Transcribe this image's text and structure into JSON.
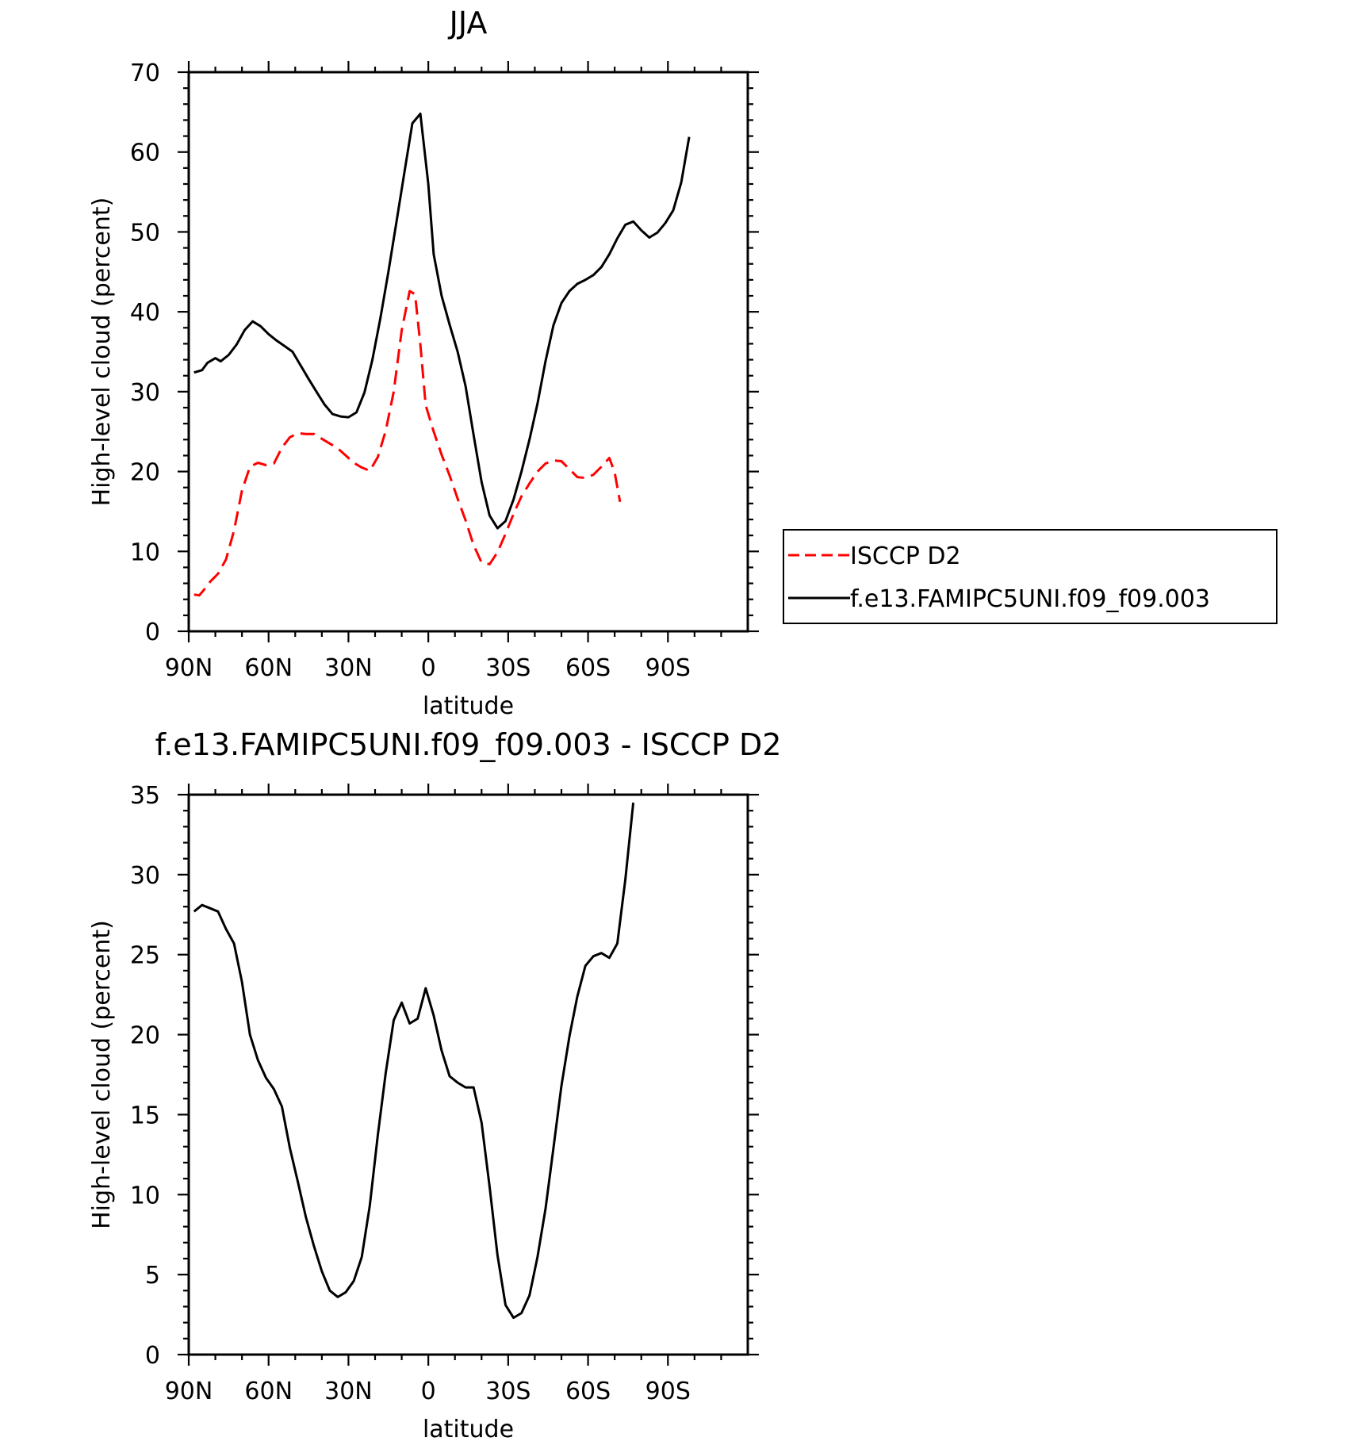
{
  "chart_data": [
    {
      "type": "line",
      "title": "JJA",
      "xlabel": "latitude",
      "ylabel": "High-level cloud (percent)",
      "xlim": [
        90,
        -90
      ],
      "ylim": [
        0,
        70
      ],
      "xticks": [
        {
          "value": 90,
          "label": "90N"
        },
        {
          "value": 60,
          "label": "60N"
        },
        {
          "value": 30,
          "label": "30N"
        },
        {
          "value": 0,
          "label": "0"
        },
        {
          "value": -30,
          "label": "30S"
        },
        {
          "value": -60,
          "label": "60S"
        },
        {
          "value": -90,
          "label": "90S"
        }
      ],
      "yticks": [
        0,
        10,
        20,
        30,
        40,
        50,
        60,
        70
      ],
      "grid": false,
      "legend_position": "right",
      "series": [
        {
          "name": "ISCCP D2",
          "color": "#ff0000",
          "style": "dashed",
          "points": [
            [
              88,
              4.6
            ],
            [
              86,
              4.5
            ],
            [
              84,
              5.3
            ],
            [
              82,
              6.2
            ],
            [
              79,
              7.2
            ],
            [
              76,
              9.0
            ],
            [
              73,
              12.6
            ],
            [
              70,
              17.6
            ],
            [
              67,
              20.6
            ],
            [
              64,
              21.1
            ],
            [
              61,
              20.8
            ],
            [
              58,
              21.0
            ],
            [
              55,
              23.0
            ],
            [
              52,
              24.3
            ],
            [
              49,
              24.8
            ],
            [
              46,
              24.7
            ],
            [
              43,
              24.7
            ],
            [
              40,
              24.1
            ],
            [
              37,
              23.5
            ],
            [
              34,
              22.9
            ],
            [
              31,
              22.0
            ],
            [
              28,
              21.1
            ],
            [
              25,
              20.5
            ],
            [
              22,
              20.1
            ],
            [
              19,
              21.8
            ],
            [
              16,
              25.1
            ],
            [
              13,
              30.0
            ],
            [
              10,
              37.7
            ],
            [
              7,
              42.6
            ],
            [
              5,
              42.2
            ],
            [
              3,
              35.9
            ],
            [
              1,
              28.3
            ],
            [
              -2,
              25.0
            ],
            [
              -5,
              22.1
            ],
            [
              -8,
              19.5
            ],
            [
              -11,
              16.6
            ],
            [
              -14,
              13.9
            ],
            [
              -17,
              10.8
            ],
            [
              -20,
              8.6
            ],
            [
              -23,
              8.4
            ],
            [
              -26,
              9.9
            ],
            [
              -29,
              12.2
            ],
            [
              -32,
              14.7
            ],
            [
              -35,
              16.9
            ],
            [
              -38,
              18.5
            ],
            [
              -41,
              20.0
            ],
            [
              -44,
              21.0
            ],
            [
              -47,
              21.4
            ],
            [
              -50,
              21.3
            ],
            [
              -53,
              20.3
            ],
            [
              -56,
              19.3
            ],
            [
              -59,
              19.2
            ],
            [
              -62,
              19.6
            ],
            [
              -65,
              20.6
            ],
            [
              -68,
              21.7
            ],
            [
              -70,
              19.9
            ],
            [
              -72,
              16.2
            ]
          ]
        },
        {
          "name": "f.e13.FAMIPC5UNI.f09_f09.003",
          "color": "#000000",
          "style": "solid",
          "points": [
            [
              88,
              32.4
            ],
            [
              85,
              32.7
            ],
            [
              83,
              33.6
            ],
            [
              80,
              34.2
            ],
            [
              78,
              33.8
            ],
            [
              75,
              34.6
            ],
            [
              72,
              35.9
            ],
            [
              69,
              37.7
            ],
            [
              66,
              38.8
            ],
            [
              63,
              38.2
            ],
            [
              60,
              37.2
            ],
            [
              57,
              36.4
            ],
            [
              54,
              35.7
            ],
            [
              51,
              35.0
            ],
            [
              48,
              33.3
            ],
            [
              45,
              31.6
            ],
            [
              42,
              30.0
            ],
            [
              39,
              28.4
            ],
            [
              36,
              27.2
            ],
            [
              33,
              26.9
            ],
            [
              30,
              26.8
            ],
            [
              27,
              27.4
            ],
            [
              24,
              29.9
            ],
            [
              21,
              34.0
            ],
            [
              18,
              39.2
            ],
            [
              15,
              45.0
            ],
            [
              12,
              51.2
            ],
            [
              9,
              57.4
            ],
            [
              6,
              63.6
            ],
            [
              3,
              64.8
            ],
            [
              0,
              56.0
            ],
            [
              -2,
              47.2
            ],
            [
              -5,
              42.0
            ],
            [
              -8,
              38.4
            ],
            [
              -11,
              35.0
            ],
            [
              -14,
              30.7
            ],
            [
              -17,
              24.6
            ],
            [
              -20,
              18.7
            ],
            [
              -23,
              14.5
            ],
            [
              -26,
              12.9
            ],
            [
              -29,
              13.8
            ],
            [
              -32,
              16.5
            ],
            [
              -35,
              20.0
            ],
            [
              -38,
              24.0
            ],
            [
              -41,
              28.5
            ],
            [
              -44,
              33.8
            ],
            [
              -47,
              38.3
            ],
            [
              -50,
              41.1
            ],
            [
              -53,
              42.6
            ],
            [
              -56,
              43.5
            ],
            [
              -59,
              44.0
            ],
            [
              -62,
              44.6
            ],
            [
              -65,
              45.6
            ],
            [
              -68,
              47.2
            ],
            [
              -71,
              49.2
            ],
            [
              -74,
              50.9
            ],
            [
              -77,
              51.3
            ],
            [
              -80,
              50.2
            ],
            [
              -83,
              49.3
            ],
            [
              -86,
              49.9
            ],
            [
              -89,
              51.1
            ],
            [
              -92,
              52.7
            ],
            [
              -95,
              56.2
            ],
            [
              -98,
              61.9
            ]
          ]
        }
      ]
    },
    {
      "type": "line",
      "title": "f.e13.FAMIPC5UNI.f09_f09.003 - ISCCP D2",
      "xlabel": "latitude",
      "ylabel": "High-level cloud (percent)",
      "xlim": [
        90,
        -90
      ],
      "ylim": [
        0,
        35
      ],
      "xticks": [
        {
          "value": 90,
          "label": "90N"
        },
        {
          "value": 60,
          "label": "60N"
        },
        {
          "value": 30,
          "label": "30N"
        },
        {
          "value": 0,
          "label": "0"
        },
        {
          "value": -30,
          "label": "30S"
        },
        {
          "value": -60,
          "label": "60S"
        },
        {
          "value": -90,
          "label": "90S"
        }
      ],
      "yticks": [
        0,
        5,
        10,
        15,
        20,
        25,
        30,
        35
      ],
      "grid": false,
      "series": [
        {
          "color": "#000000",
          "style": "solid",
          "points": [
            [
              88,
              27.7
            ],
            [
              85,
              28.1
            ],
            [
              82,
              27.9
            ],
            [
              79,
              27.7
            ],
            [
              76,
              26.6
            ],
            [
              73,
              25.7
            ],
            [
              70,
              23.3
            ],
            [
              67,
              20.0
            ],
            [
              64,
              18.4
            ],
            [
              61,
              17.3
            ],
            [
              58,
              16.6
            ],
            [
              55,
              15.5
            ],
            [
              52,
              12.9
            ],
            [
              49,
              10.8
            ],
            [
              46,
              8.6
            ],
            [
              43,
              6.8
            ],
            [
              40,
              5.2
            ],
            [
              37,
              4.0
            ],
            [
              34,
              3.6
            ],
            [
              31,
              3.9
            ],
            [
              28,
              4.6
            ],
            [
              25,
              6.1
            ],
            [
              22,
              9.3
            ],
            [
              19,
              13.7
            ],
            [
              16,
              17.6
            ],
            [
              13,
              20.9
            ],
            [
              10,
              22.0
            ],
            [
              7,
              20.7
            ],
            [
              4,
              21.0
            ],
            [
              1,
              22.9
            ],
            [
              -2,
              21.2
            ],
            [
              -5,
              19.0
            ],
            [
              -8,
              17.4
            ],
            [
              -11,
              17.0
            ],
            [
              -14,
              16.7
            ],
            [
              -17,
              16.7
            ],
            [
              -20,
              14.5
            ],
            [
              -23,
              10.5
            ],
            [
              -26,
              6.2
            ],
            [
              -29,
              3.1
            ],
            [
              -32,
              2.3
            ],
            [
              -35,
              2.6
            ],
            [
              -38,
              3.7
            ],
            [
              -41,
              6.1
            ],
            [
              -44,
              9.1
            ],
            [
              -47,
              12.9
            ],
            [
              -50,
              16.8
            ],
            [
              -53,
              19.9
            ],
            [
              -56,
              22.4
            ],
            [
              -59,
              24.3
            ],
            [
              -62,
              24.9
            ],
            [
              -65,
              25.1
            ],
            [
              -68,
              24.8
            ],
            [
              -71,
              25.7
            ],
            [
              -74,
              29.7
            ],
            [
              -77,
              34.5
            ]
          ]
        }
      ]
    }
  ]
}
